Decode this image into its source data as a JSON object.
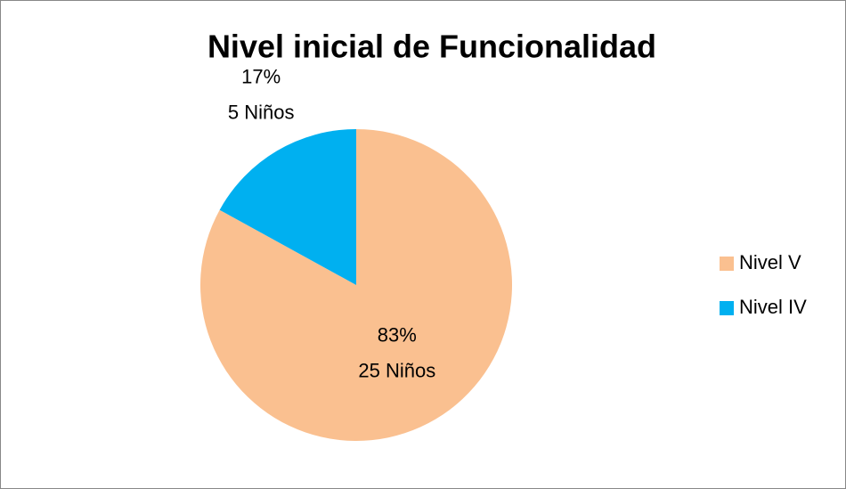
{
  "chart_data": {
    "type": "pie",
    "title": "Nivel inicial de Funcionalidad",
    "categories": [
      "Nivel V",
      "Nivel IV"
    ],
    "values": [
      83,
      17
    ],
    "value_labels": [
      "83%",
      "17%"
    ],
    "counts": [
      25,
      5
    ],
    "count_labels": [
      "25 Niños",
      "5 Niños"
    ],
    "colors": [
      "#FAC090",
      "#00B0F0"
    ],
    "legend": "right"
  }
}
